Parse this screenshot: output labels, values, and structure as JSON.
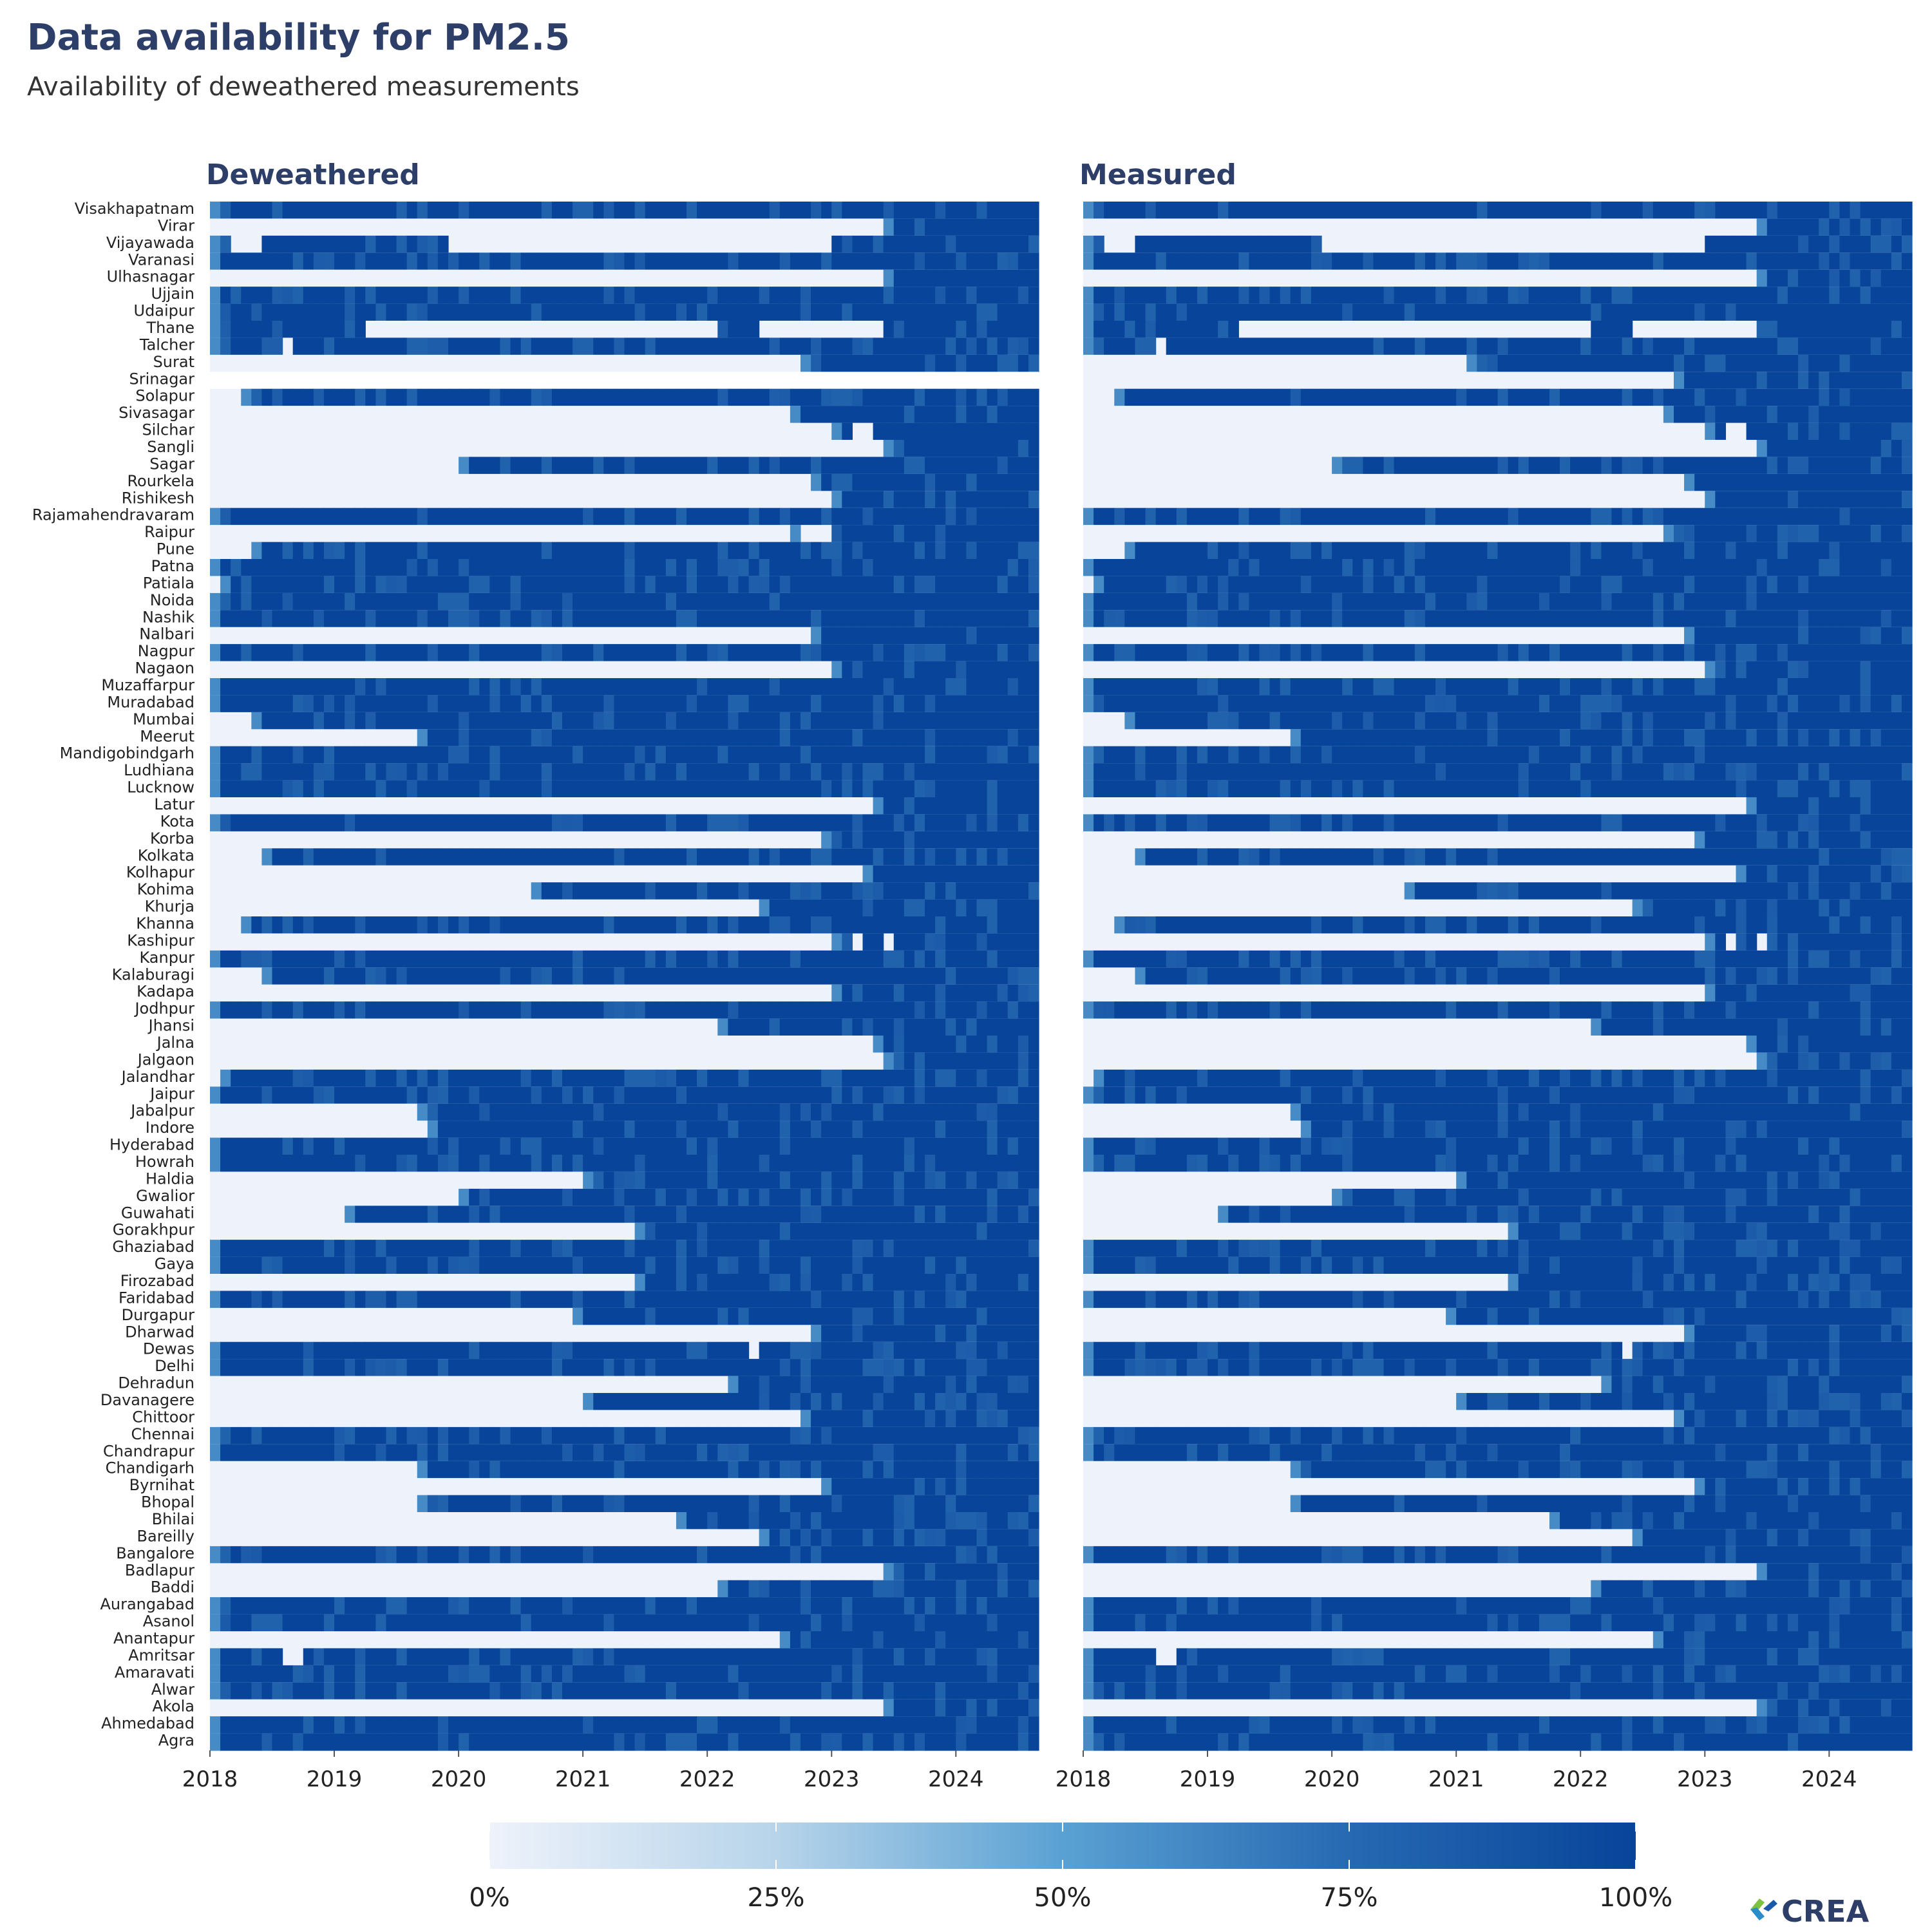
{
  "title": "Data availability for PM2.5",
  "subtitle": "Availability of deweathered measurements",
  "logo_text": "CREA",
  "colors": {
    "low": "#eef2fb",
    "high": "#08449a",
    "title": "#2d3e69"
  },
  "chart_data": {
    "type": "heatmap",
    "panels": [
      "Deweathered",
      "Measured"
    ],
    "x_ticks": [
      "2018",
      "2019",
      "2020",
      "2021",
      "2022",
      "2023",
      "2024"
    ],
    "x_range": [
      "2018-01",
      "2024-08"
    ],
    "value_unit": "share of days with data (0–1)",
    "colorbar": {
      "ticks": [
        "0%",
        "25%",
        "50%",
        "75%",
        "100%"
      ],
      "range": [
        0,
        1
      ]
    },
    "cities": [
      "Visakhapatnam",
      "Virar",
      "Vijayawada",
      "Varanasi",
      "Ulhasnagar",
      "Ujjain",
      "Udaipur",
      "Thane",
      "Talcher",
      "Surat",
      "Srinagar",
      "Solapur",
      "Sivasagar",
      "Silchar",
      "Sangli",
      "Sagar",
      "Rourkela",
      "Rishikesh",
      "Rajamahendravaram",
      "Raipur",
      "Pune",
      "Patna",
      "Patiala",
      "Noida",
      "Nashik",
      "Nalbari",
      "Nagpur",
      "Nagaon",
      "Muzaffarpur",
      "Muradabad",
      "Mumbai",
      "Meerut",
      "Mandigobindgarh",
      "Ludhiana",
      "Lucknow",
      "Latur",
      "Kota",
      "Korba",
      "Kolkata",
      "Kolhapur",
      "Kohima",
      "Khurja",
      "Khanna",
      "Kashipur",
      "Kanpur",
      "Kalaburagi",
      "Kadapa",
      "Jodhpur",
      "Jhansi",
      "Jalna",
      "Jalgaon",
      "Jalandhar",
      "Jaipur",
      "Jabalpur",
      "Indore",
      "Hyderabad",
      "Howrah",
      "Haldia",
      "Gwalior",
      "Guwahati",
      "Gorakhpur",
      "Ghaziabad",
      "Gaya",
      "Firozabad",
      "Faridabad",
      "Durgapur",
      "Dharwad",
      "Dewas",
      "Delhi",
      "Dehradun",
      "Davanagere",
      "Chittoor",
      "Chennai",
      "Chandrapur",
      "Chandigarh",
      "Byrnihat",
      "Bhopal",
      "Bhilai",
      "Bareilly",
      "Bangalore",
      "Badlapur",
      "Baddi",
      "Aurangabad",
      "Asanol",
      "Anantapur",
      "Amritsar",
      "Amaravati",
      "Alwar",
      "Akola",
      "Ahmedabad",
      "Agra"
    ],
    "availability_summary": {
      "description": "per city and panel: first month with data (data-availability start) and ranges of missing months",
      "deweathered": {
        "Visakhapatnam": {
          "start": "2018-01"
        },
        "Virar": {
          "start": "2023-06"
        },
        "Vijayawada": {
          "start": "2018-01",
          "missing": [
            [
              "2018-03",
              "2018-05"
            ],
            [
              "2019-12",
              "2022-12"
            ]
          ]
        },
        "Varanasi": {
          "start": "2018-01"
        },
        "Ulhasnagar": {
          "start": "2023-06"
        },
        "Ujjain": {
          "start": "2018-01"
        },
        "Udaipur": {
          "start": "2018-01"
        },
        "Thane": {
          "start": "2018-01",
          "missing": [
            [
              "2019-04",
              "2022-01"
            ],
            [
              "2022-06",
              "2023-05"
            ]
          ]
        },
        "Talcher": {
          "start": "2018-01",
          "missing": [
            [
              "2018-08",
              "2018-08"
            ]
          ]
        },
        "Surat": {
          "start": "2022-10"
        },
        "Srinagar": {
          "start": "none"
        },
        "Solapur": {
          "start": "2018-04"
        },
        "Sivasagar": {
          "start": "2022-09"
        },
        "Silchar": {
          "start": "2023-01",
          "missing": [
            [
              "2023-03",
              "2023-04"
            ]
          ]
        },
        "Sangli": {
          "start": "2023-06"
        },
        "Sagar": {
          "start": "2020-01"
        },
        "Rourkela": {
          "start": "2022-11"
        },
        "Rishikesh": {
          "start": "2023-01"
        },
        "Rajamahendravaram": {
          "start": "2018-01"
        },
        "Raipur": {
          "start": "2022-09",
          "missing": [
            [
              "2022-10",
              "2022-12"
            ]
          ]
        },
        "Pune": {
          "start": "2018-05"
        },
        "Patna": {
          "start": "2018-01"
        },
        "Patiala": {
          "start": "2018-02"
        },
        "Noida": {
          "start": "2018-01"
        },
        "Nashik": {
          "start": "2018-01"
        },
        "Nalbari": {
          "start": "2022-11"
        },
        "Nagpur": {
          "start": "2018-01"
        },
        "Nagaon": {
          "start": "2023-01"
        },
        "Muzaffarpur": {
          "start": "2018-01"
        },
        "Muradabad": {
          "start": "2018-01"
        },
        "Mumbai": {
          "start": "2018-05"
        },
        "Meerut": {
          "start": "2019-09"
        },
        "Mandigobindgarh": {
          "start": "2018-01"
        },
        "Ludhiana": {
          "start": "2018-01"
        },
        "Lucknow": {
          "start": "2018-01"
        },
        "Latur": {
          "start": "2023-05"
        },
        "Kota": {
          "start": "2018-01"
        },
        "Korba": {
          "start": "2022-12"
        },
        "Kolkata": {
          "start": "2018-06"
        },
        "Kolhapur": {
          "start": "2023-04"
        },
        "Kohima": {
          "start": "2020-08"
        },
        "Khurja": {
          "start": "2022-06"
        },
        "Khanna": {
          "start": "2018-04"
        },
        "Kashipur": {
          "start": "2023-01",
          "missing": [
            [
              "2023-03",
              "2023-03"
            ],
            [
              "2023-06",
              "2023-06"
            ]
          ]
        },
        "Kanpur": {
          "start": "2018-01"
        },
        "Kalaburagi": {
          "start": "2018-06"
        },
        "Kadapa": {
          "start": "2023-01"
        },
        "Jodhpur": {
          "start": "2018-01"
        },
        "Jhansi": {
          "start": "2022-02"
        },
        "Jalna": {
          "start": "2023-05"
        },
        "Jalgaon": {
          "start": "2023-06"
        },
        "Jalandhar": {
          "start": "2018-02"
        },
        "Jaipur": {
          "start": "2018-01"
        },
        "Jabalpur": {
          "start": "2019-09"
        },
        "Indore": {
          "start": "2019-10"
        },
        "Hyderabad": {
          "start": "2018-01"
        },
        "Howrah": {
          "start": "2018-01"
        },
        "Haldia": {
          "start": "2021-01"
        },
        "Gwalior": {
          "start": "2020-01"
        },
        "Guwahati": {
          "start": "2019-02"
        },
        "Gorakhpur": {
          "start": "2021-06"
        },
        "Ghaziabad": {
          "start": "2018-01"
        },
        "Gaya": {
          "start": "2018-01"
        },
        "Firozabad": {
          "start": "2021-06"
        },
        "Faridabad": {
          "start": "2018-01"
        },
        "Durgapur": {
          "start": "2020-12"
        },
        "Dharwad": {
          "start": "2022-11"
        },
        "Dewas": {
          "start": "2018-01",
          "missing": [
            [
              "2022-05",
              "2022-05"
            ]
          ]
        },
        "Delhi": {
          "start": "2018-01"
        },
        "Dehradun": {
          "start": "2022-03"
        },
        "Davanagere": {
          "start": "2021-01"
        },
        "Chittoor": {
          "start": "2022-10"
        },
        "Chennai": {
          "start": "2018-01"
        },
        "Chandrapur": {
          "start": "2018-01"
        },
        "Chandigarh": {
          "start": "2019-09"
        },
        "Byrnihat": {
          "start": "2022-12"
        },
        "Bhopal": {
          "start": "2019-09"
        },
        "Bhilai": {
          "start": "2021-10"
        },
        "Bareilly": {
          "start": "2022-06"
        },
        "Bangalore": {
          "start": "2018-01"
        },
        "Badlapur": {
          "start": "2023-06"
        },
        "Baddi": {
          "start": "2022-02"
        },
        "Aurangabad": {
          "start": "2018-01"
        },
        "Asanol": {
          "start": "2018-01"
        },
        "Anantapur": {
          "start": "2022-08"
        },
        "Amritsar": {
          "start": "2018-01",
          "missing": [
            [
              "2018-08",
              "2018-09"
            ]
          ]
        },
        "Amaravati": {
          "start": "2018-01"
        },
        "Alwar": {
          "start": "2018-01"
        },
        "Akola": {
          "start": "2023-06"
        },
        "Ahmedabad": {
          "start": "2018-01"
        },
        "Agra": {
          "start": "2018-01"
        }
      },
      "measured": {
        "Surat": {
          "start": "2021-02"
        },
        "Srinagar": {
          "start": "2022-10"
        },
        "Raipur": {
          "start": "2022-09"
        },
        "Others": {
          "start": "same as Deweathered"
        }
      }
    }
  }
}
